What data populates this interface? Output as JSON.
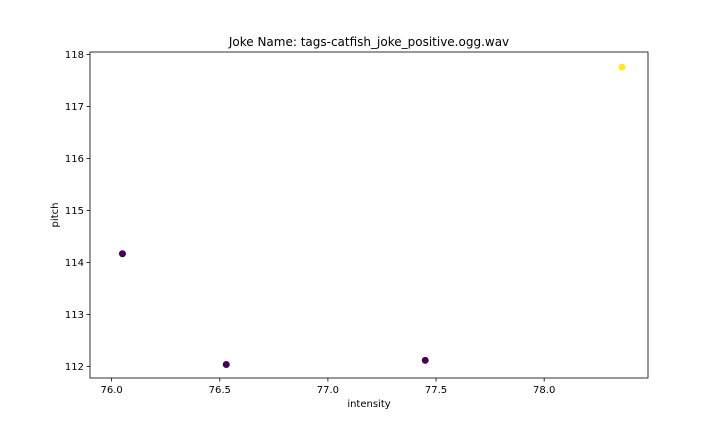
{
  "chart_data": {
    "type": "scatter",
    "title": "Joke Name: tags-catfish_joke_positive.ogg.wav",
    "xlabel": "intensity",
    "ylabel": "pitch",
    "xlim": [
      75.9,
      78.48
    ],
    "ylim": [
      111.78,
      118.05
    ],
    "xticks": [
      76.0,
      76.5,
      77.0,
      77.5,
      78.0
    ],
    "xtick_labels": [
      "76.0",
      "76.5",
      "77.0",
      "77.5",
      "78.0"
    ],
    "yticks": [
      112,
      113,
      114,
      115,
      116,
      117,
      118
    ],
    "ytick_labels": [
      "112",
      "113",
      "114",
      "115",
      "116",
      "117",
      "118"
    ],
    "grid": false,
    "points": [
      {
        "x": 76.05,
        "y": 114.17,
        "color": "#440154"
      },
      {
        "x": 76.53,
        "y": 112.04,
        "color": "#440154"
      },
      {
        "x": 77.45,
        "y": 112.12,
        "color": "#440154"
      },
      {
        "x": 78.36,
        "y": 117.76,
        "color": "#fde725"
      }
    ]
  }
}
